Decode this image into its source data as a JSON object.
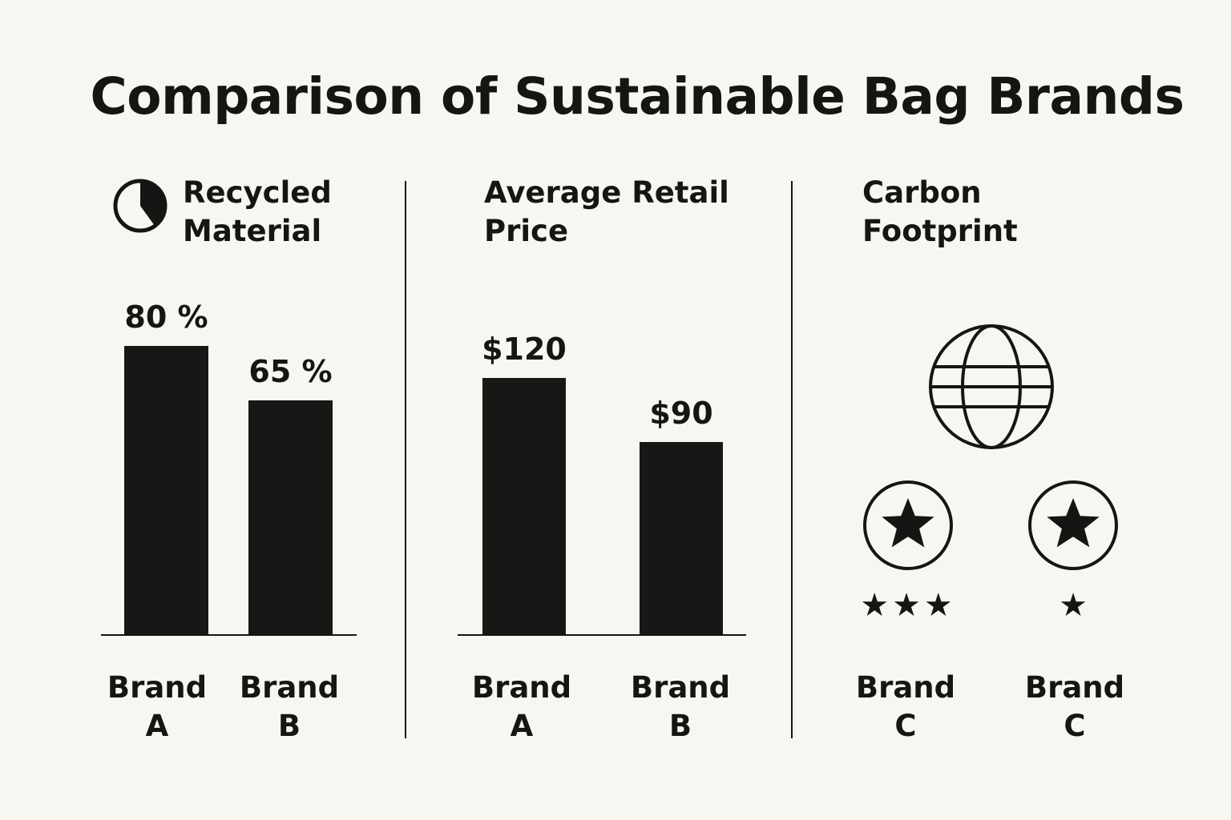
{
  "title": "Comparison of Sustainable Bag Brands",
  "panels": {
    "recycled": {
      "title_line1": "Recycled",
      "title_line2": "Material",
      "icon": "pie-chart-icon"
    },
    "price": {
      "title_line1": "Average Retail",
      "title_line2": "Price"
    },
    "carbon": {
      "title_line1": "Carbon",
      "title_line2": "Footprint",
      "icon": "globe-icon"
    }
  },
  "chart_data": [
    {
      "type": "bar",
      "title": "Recycled Material",
      "categories": [
        "Brand A",
        "Brand B"
      ],
      "values": [
        80,
        65
      ],
      "data_labels": [
        "80 %",
        "65 %"
      ],
      "category_lines": [
        [
          "Brand",
          "A"
        ],
        [
          "Brand",
          "B"
        ]
      ]
    },
    {
      "type": "bar",
      "title": "Average Retail Price",
      "categories": [
        "Brand A",
        "Brand B"
      ],
      "values": [
        120,
        90
      ],
      "data_labels": [
        "$120",
        "$90"
      ],
      "category_lines": [
        [
          "Brand",
          "A"
        ],
        [
          "Brand",
          "B"
        ]
      ]
    },
    {
      "type": "table",
      "title": "Carbon Footprint",
      "categories": [
        "Brand C",
        "Brand C"
      ],
      "star_ratings": [
        3,
        1
      ],
      "star_labels": [
        "★★★",
        "★"
      ],
      "category_lines": [
        [
          "Brand",
          "C"
        ],
        [
          "Brand",
          "C"
        ]
      ]
    }
  ],
  "colors": {
    "background": "#f8f6f1",
    "ink": "#151614"
  }
}
